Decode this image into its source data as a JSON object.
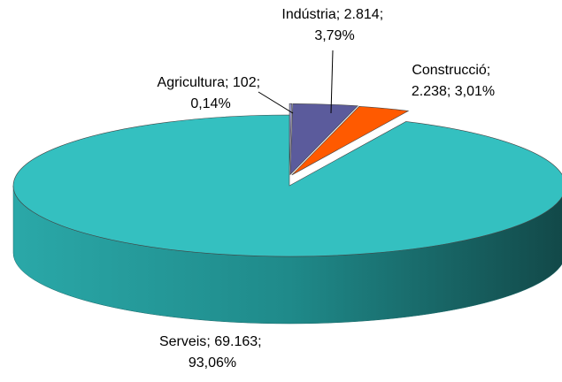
{
  "chart_data": {
    "type": "pie3d",
    "categories": [
      "Agricultura",
      "Indústria",
      "Construcció",
      "Serveis"
    ],
    "values": [
      102,
      2814,
      2238,
      69163
    ],
    "value_labels": [
      "102",
      "2.814",
      "2.238",
      "69.163"
    ],
    "percents": [
      0.14,
      3.79,
      3.01,
      93.06
    ],
    "percent_labels": [
      "0,14%",
      "3,79%",
      "3,01%",
      "93,06%"
    ],
    "label_separator": "; ",
    "colors": [
      "#9a9ad0",
      "#5b5b9c",
      "#ff5a00",
      "#34c0c0"
    ]
  }
}
